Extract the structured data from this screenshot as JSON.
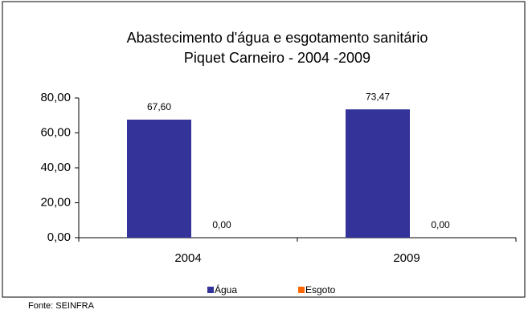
{
  "chart_data": {
    "type": "bar",
    "title": "Abastecimento d'água e esgotamento sanitário",
    "subtitle": "Piquet Carneiro - 2004 -2009",
    "categories": [
      "2004",
      "2009"
    ],
    "series": [
      {
        "name": "Água",
        "color": "#333399",
        "values": [
          67.6,
          73.47
        ],
        "value_labels": [
          "67,60",
          "73,47"
        ]
      },
      {
        "name": "Esgoto",
        "color": "#ff6600",
        "values": [
          0,
          0
        ],
        "value_labels": [
          "0,00",
          "0,00"
        ]
      }
    ],
    "ylim": [
      0,
      80
    ],
    "yticks": [
      {
        "value": 0,
        "label": "0,00"
      },
      {
        "value": 20,
        "label": "20,00"
      },
      {
        "value": 40,
        "label": "40,00"
      },
      {
        "value": 60,
        "label": "60,00"
      },
      {
        "value": 80,
        "label": "80,00"
      }
    ],
    "grid": false,
    "legend": "bottom",
    "source": "Fonte: SEINFRA"
  }
}
